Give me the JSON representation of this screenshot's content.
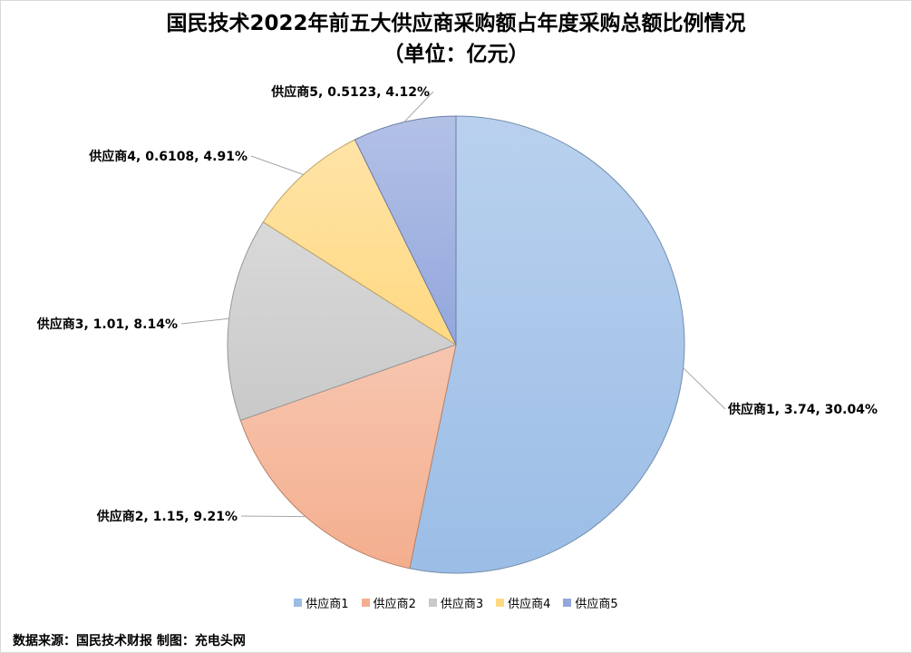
{
  "chart_data": {
    "type": "pie",
    "title": "国民技术2022年前五大供应商采购额占年度采购总额比例情况",
    "subtitle": "（单位：亿元）",
    "categories": [
      "供应商1",
      "供应商2",
      "供应商3",
      "供应商4",
      "供应商5"
    ],
    "values": [
      3.74,
      1.15,
      1.01,
      0.6108,
      0.5123
    ],
    "percent_labels": [
      "30.04%",
      "9.21%",
      "8.14%",
      "4.91%",
      "4.12%"
    ],
    "data_labels": [
      "供应商1, 3.74, 30.04%",
      "供应商2, 1.15, 9.21%",
      "供应商3, 1.01, 8.14%",
      "供应商4, 0.6108, 4.91%",
      "供应商5, 0.5123, 4.12%"
    ],
    "colors": [
      "#9bbde6",
      "#f4ae8e",
      "#c9c9c9",
      "#ffd982",
      "#93a7dc"
    ],
    "legend_position": "bottom",
    "start_angle": "12 o'clock",
    "direction": "clockwise"
  },
  "footer": {
    "source": "数据来源：国民技术财报  制图：充电头网"
  }
}
